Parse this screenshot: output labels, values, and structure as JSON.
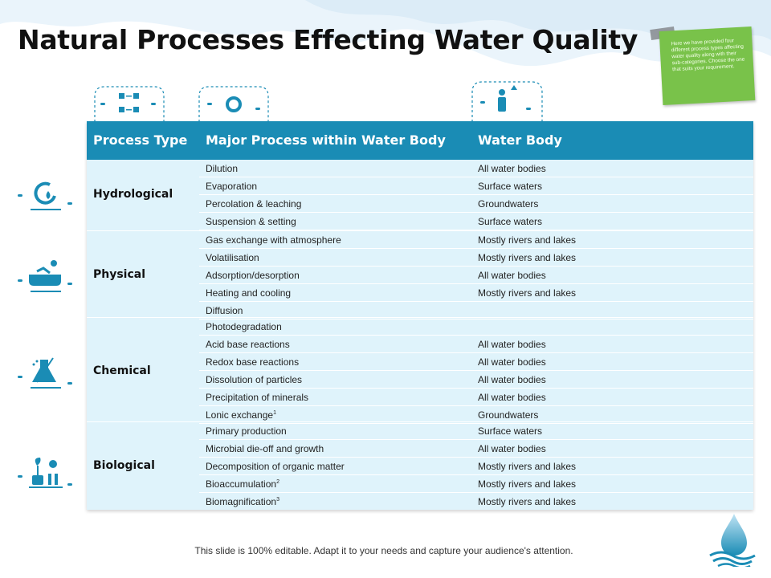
{
  "title": "Natural Processes Effecting Water Quality",
  "note": "Here we have provided four different process types affecting water quality along with their sub-categories. Choose the one that suits your requirement.",
  "table": {
    "headers": [
      "Process Type",
      "Major Process within Water Body",
      "Water Body"
    ],
    "groups": [
      {
        "type": "Hydrological",
        "icon": "water-cycle-icon",
        "rows": [
          {
            "process": "Dilution",
            "body": "All water bodies"
          },
          {
            "process": "Evaporation",
            "body": "Surface waters"
          },
          {
            "process": "Percolation & leaching",
            "body": "Groundwaters"
          },
          {
            "process": "Suspension & setting",
            "body": "Surface waters"
          }
        ]
      },
      {
        "type": "Physical",
        "icon": "person-bathing-icon",
        "rows": [
          {
            "process": "Gas exchange with atmosphere",
            "body": "Mostly rivers  and lakes"
          },
          {
            "process": "Volatilisation",
            "body": "Mostly rivers  and lakes"
          },
          {
            "process": "Adsorption/desorption",
            "body": "All water bodies"
          },
          {
            "process": "Heating and cooling",
            "body": "Mostly rivers  and lakes"
          },
          {
            "process": "Diffusion",
            "body": ""
          }
        ]
      },
      {
        "type": "Chemical",
        "icon": "lab-flask-icon",
        "rows": [
          {
            "process": "Photodegradation",
            "body": ""
          },
          {
            "process": "Acid base reactions",
            "body": "All water  bodies"
          },
          {
            "process": "Redox base reactions",
            "body": "All water  bodies"
          },
          {
            "process": "Dissolution of particles",
            "body": "All water  bodies"
          },
          {
            "process": "Precipitation of minerals",
            "body": "All water  bodies"
          },
          {
            "process": "Lonic exchange",
            "sup": "1",
            "body": "Groundwaters"
          }
        ]
      },
      {
        "type": "Biological",
        "icon": "plant-lab-icon",
        "rows": [
          {
            "process": "Primary production",
            "body": "Surface waters"
          },
          {
            "process": "Microbial die-off and growth",
            "body": "All water  bodies"
          },
          {
            "process": "Decomposition of organic matter",
            "body": "Mostly rivers  and lakes"
          },
          {
            "process": "Bioaccumulation",
            "sup": "2",
            "body": "Mostly rivers  and lakes"
          },
          {
            "process": "Biomagnification",
            "sup": "3",
            "body": "Mostly rivers  and lakes"
          }
        ]
      }
    ]
  },
  "footer": "This slide is 100% editable. Adapt it to your needs and capture your audience's attention.",
  "colors": {
    "header": "#1a8cb5",
    "row_bg": "#dff3fb",
    "note": "#79c24a",
    "icon": "#1a8cb5"
  }
}
